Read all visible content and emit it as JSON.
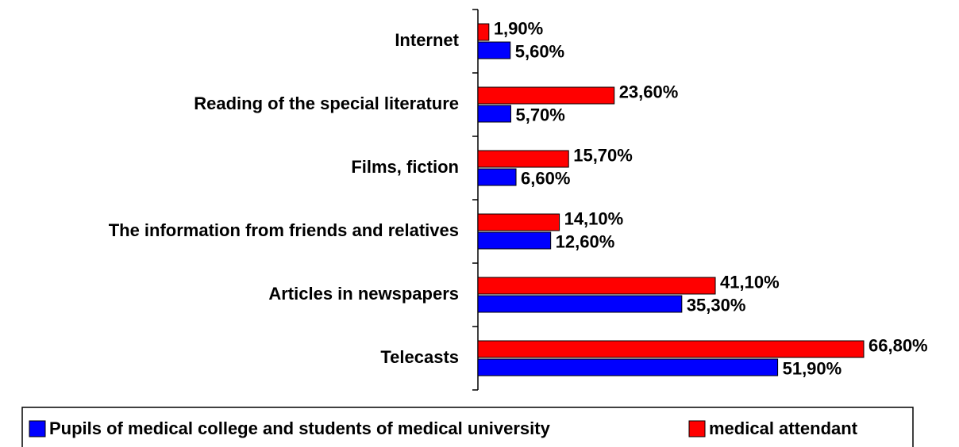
{
  "chart_data": {
    "type": "bar",
    "orientation": "horizontal",
    "categories": [
      "Internet",
      "Reading of the special literature",
      "Films, fiction",
      "The information from friends and relatives",
      "Articles in newspapers",
      "Telecasts"
    ],
    "series": [
      {
        "name": "Pupils of medical college and students of medical university",
        "color": "#0000ff",
        "values": [
          5.6,
          5.7,
          6.6,
          12.6,
          35.3,
          51.9
        ],
        "value_labels": [
          "5,60%",
          "5,70%",
          "6,60%",
          "12,60%",
          "35,30%",
          "51,90%"
        ]
      },
      {
        "name": "medical attendant",
        "color": "#ff0000",
        "values": [
          1.9,
          23.6,
          15.7,
          14.1,
          41.1,
          66.8
        ],
        "value_labels": [
          "1,90%",
          "23,60%",
          "15,70%",
          "14,10%",
          "41,10%",
          "66,80%"
        ]
      }
    ],
    "legend": "bottom"
  }
}
